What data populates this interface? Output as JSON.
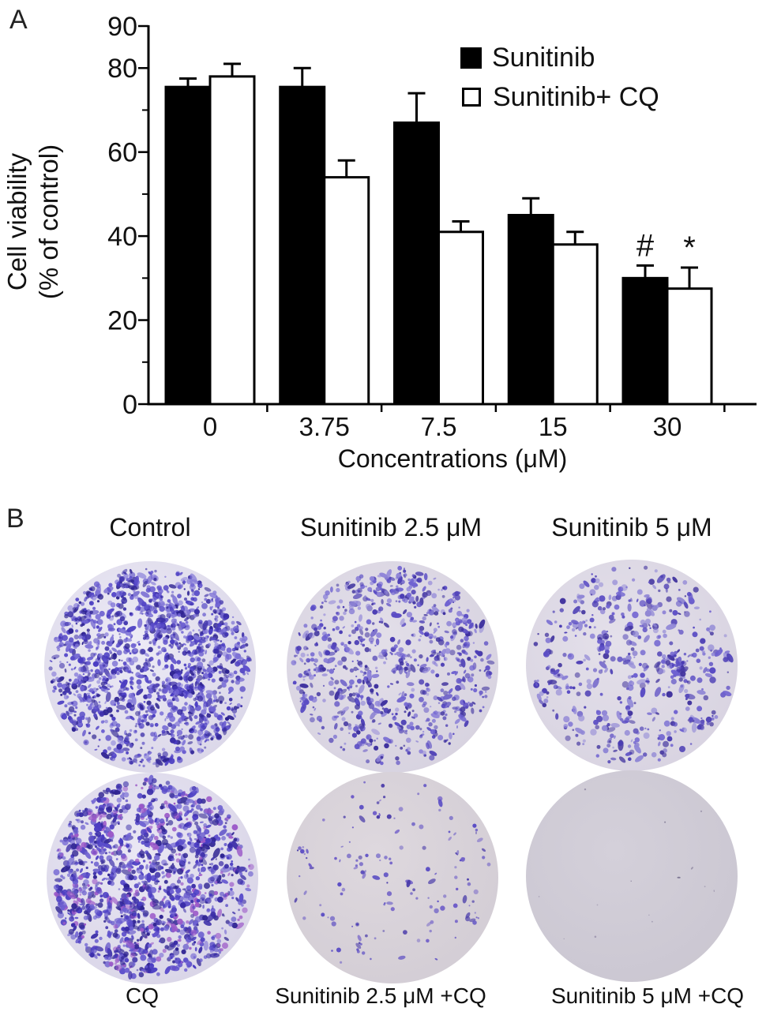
{
  "page": {
    "background": "#ffffff"
  },
  "panel_a": {
    "label": "A",
    "y_axis_title_line1": "Cell viability",
    "y_axis_title_line2": "(% of control)",
    "x_axis_title": "Concentrations (μM)"
  },
  "chart_data": {
    "type": "bar",
    "title": "",
    "xlabel": "Concentrations (μM)",
    "ylabel": "Cell viability (% of control)",
    "categories": [
      "0",
      "3.75",
      "7.5",
      "15",
      "30"
    ],
    "series": [
      {
        "name": "Sunitinib",
        "fill": "#000000",
        "stroke": "#000000",
        "values": [
          75.5,
          75.5,
          67,
          45,
          30
        ],
        "errors_plus": [
          2,
          4.5,
          7,
          4,
          3
        ],
        "annotations": [
          "",
          "",
          "",
          "",
          "#"
        ]
      },
      {
        "name": "Sunitinib+ CQ",
        "fill": "#ffffff",
        "stroke": "#000000",
        "values": [
          78,
          54,
          41,
          38,
          27.5
        ],
        "errors_plus": [
          3,
          4,
          2.5,
          3,
          5
        ],
        "annotations": [
          "",
          "",
          "",
          "",
          "*"
        ]
      }
    ],
    "ylim": [
      0,
      90
    ],
    "yticks_major": [
      0,
      20,
      40,
      60,
      80,
      90
    ],
    "yticks_minor": [
      10,
      30,
      50,
      70
    ],
    "grid": false,
    "legend_position": "top-right",
    "error_bars": "plus-one-sided"
  },
  "panel_b": {
    "label": "B",
    "assay": "colony formation (crystal violet stain)",
    "stain_color": "#5647c6",
    "dishes": [
      {
        "label": "Control",
        "colony_density": "very high",
        "render": {
          "seed": 11,
          "count": 1500,
          "rmin": 1.1,
          "rmax": 4.0,
          "cluster": 0.38,
          "bgCenter": "#edebf6",
          "bgEdge": "#d9d5e7",
          "palette": [
            "#4a3cc2",
            "#5a4cca",
            "#3b2ea8",
            "#6e61d2",
            "#8176d8",
            "#2f2492"
          ]
        }
      },
      {
        "label": "Sunitinib 2.5 μM",
        "colony_density": "high",
        "render": {
          "seed": 22,
          "count": 820,
          "rmin": 1.1,
          "rmax": 3.8,
          "cluster": 0.3,
          "bgCenter": "#e3dfe9",
          "bgEdge": "#d6d1df",
          "palette": [
            "#5a4cc4",
            "#4a3cb4",
            "#6e61d0",
            "#3d309e",
            "#8f84d8"
          ]
        }
      },
      {
        "label": "Sunitinib 5 μM",
        "colony_density": "medium",
        "render": {
          "seed": 33,
          "count": 520,
          "rmin": 1.1,
          "rmax": 4.2,
          "cluster": 0.3,
          "bgCenter": "#e4e0ea",
          "bgEdge": "#d7d2e0",
          "palette": [
            "#5a4cc4",
            "#4a3cb4",
            "#6e61d0",
            "#43359f",
            "#9087d6"
          ]
        }
      },
      {
        "label": "CQ",
        "colony_density": "very high",
        "render": {
          "seed": 44,
          "count": 1400,
          "rmin": 1.2,
          "rmax": 4.2,
          "cluster": 0.4,
          "bgCenter": "#eae7f4",
          "bgEdge": "#d7d3e6",
          "palette": [
            "#4a3cc2",
            "#5a4cca",
            "#3b2ea8",
            "#6e61d2",
            "#9b59c8",
            "#2f2492"
          ]
        }
      },
      {
        "label": "Sunitinib 2.5 μM +CQ",
        "colony_density": "low",
        "render": {
          "seed": 55,
          "count": 150,
          "rmin": 1.0,
          "rmax": 3.2,
          "cluster": 0.15,
          "bgCenter": "#ded8de",
          "bgEdge": "#d2ccd4",
          "palette": [
            "#5a4cc4",
            "#6e5cc8",
            "#7a6cc8",
            "#4a3caa"
          ]
        }
      },
      {
        "label": "Sunitinib 5 μM +CQ",
        "colony_density": "none",
        "render": {
          "seed": 66,
          "count": 14,
          "rmin": 0.7,
          "rmax": 1.4,
          "cluster": 0,
          "bgCenter": "#d4d0da",
          "bgEdge": "#cac6d1",
          "palette": [
            "#8e86a2",
            "#7a7290"
          ]
        }
      }
    ]
  }
}
